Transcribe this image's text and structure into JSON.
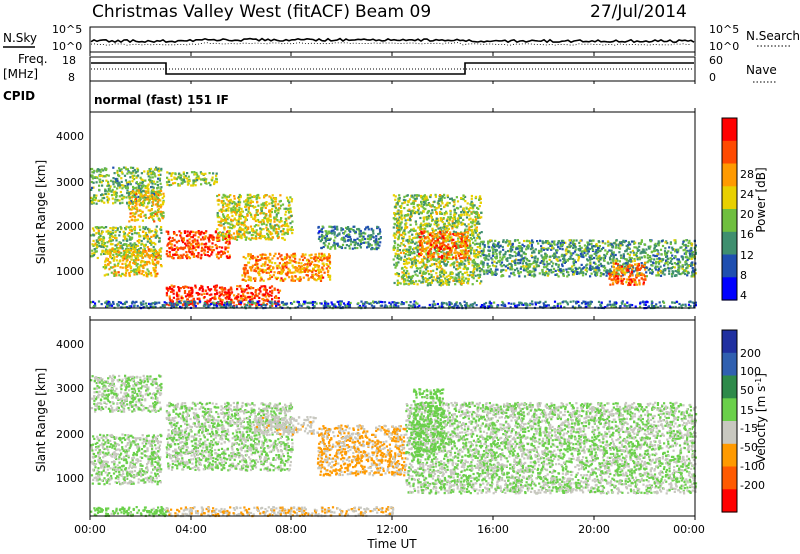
{
  "header": {
    "station": "Christmas Valley West (fitACF)",
    "beam": "Beam 09",
    "date": "27/Jul/2014"
  },
  "top_panels": {
    "nsky_label": "N.Sky",
    "nsearch_label": "N.Search",
    "nsky_ticks": [
      "10^5",
      "10^0"
    ],
    "nsky_right_ticks": [
      "10^5",
      "10^0"
    ],
    "freq_label_line1": "Freq.",
    "freq_label_line2": "[MHz]",
    "freq_ticks": [
      "18",
      "8"
    ],
    "nave_label": "Nave",
    "nave_ticks": [
      "60",
      "0"
    ],
    "cpid_label": "CPID",
    "cpid_text": "normal (fast) 151 IF"
  },
  "power_panel": {
    "ylabel": "Slant Range [km]",
    "yticks": [
      "4000",
      "3000",
      "2000",
      "1000"
    ],
    "colorbar_label": "Power [dB]",
    "colorbar_ticks": [
      "28",
      "24",
      "20",
      "16",
      "12",
      "8",
      "4"
    ],
    "colorbar_colors": [
      "#ff0000",
      "#ff4a00",
      "#ff9a00",
      "#e8d000",
      "#6fbf3f",
      "#3f8f6f",
      "#1f4fb0",
      "#0000ff"
    ]
  },
  "velocity_panel": {
    "ylabel": "Slant Range [km]",
    "yticks": [
      "4000",
      "3000",
      "2000",
      "1000"
    ],
    "colorbar_label": "Velocity [m s",
    "colorbar_label_sup": "-1",
    "colorbar_label_end": "]",
    "colorbar_ticks": [
      "200",
      "100",
      "50",
      "15",
      "-15",
      "-50",
      "-100",
      "-200"
    ],
    "colorbar_colors": [
      "#2030a0",
      "#3060b0",
      "#2e8a4a",
      "#6ad04a",
      "#c8c8c0",
      "#ff9a00",
      "#ff5a00",
      "#ff0000"
    ]
  },
  "x_axis": {
    "ticks": [
      "00:00",
      "04:00",
      "08:00",
      "12:00",
      "16:00",
      "20:00",
      "00:00"
    ],
    "label": "Time UT"
  },
  "chart_data": [
    {
      "type": "heatmap",
      "name_hint": "power",
      "xlabel": "Time UT",
      "ylabel": "Slant Range [km]",
      "xlim": [
        0,
        24
      ],
      "ylim": [
        180,
        4500
      ],
      "colorbar_label": "Power [dB]",
      "colorbar_range": [
        0,
        30
      ],
      "regions": [
        {
          "t": [
            0.0,
            2.8
          ],
          "r": [
            2500,
            3300
          ],
          "value": 12
        },
        {
          "t": [
            1.5,
            2.9
          ],
          "r": [
            2100,
            2800
          ],
          "value": 18
        },
        {
          "t": [
            0.0,
            2.8
          ],
          "r": [
            1300,
            2000
          ],
          "value": 14
        },
        {
          "t": [
            0.5,
            2.8
          ],
          "r": [
            900,
            1500
          ],
          "value": 18
        },
        {
          "t": [
            3.0,
            5.5
          ],
          "r": [
            1300,
            1900
          ],
          "value": 26
        },
        {
          "t": [
            3.0,
            5.0
          ],
          "r": [
            2900,
            3200
          ],
          "value": 14
        },
        {
          "t": [
            5.0,
            8.0
          ],
          "r": [
            1700,
            2700
          ],
          "value": 16
        },
        {
          "t": [
            6.0,
            9.5
          ],
          "r": [
            800,
            1400
          ],
          "value": 22
        },
        {
          "t": [
            3.0,
            7.5
          ],
          "r": [
            250,
            700
          ],
          "value": 28
        },
        {
          "t": [
            9.0,
            11.5
          ],
          "r": [
            1500,
            2000
          ],
          "value": 8
        },
        {
          "t": [
            12.0,
            15.5
          ],
          "r": [
            700,
            2700
          ],
          "value": 14
        },
        {
          "t": [
            13.0,
            15.0
          ],
          "r": [
            1300,
            1900
          ],
          "value": 24
        },
        {
          "t": [
            15.5,
            24.0
          ],
          "r": [
            900,
            1700
          ],
          "value": 10
        },
        {
          "t": [
            20.5,
            22.0
          ],
          "r": [
            700,
            1200
          ],
          "value": 24
        },
        {
          "t": [
            0.0,
            24.0
          ],
          "r": [
            200,
            350
          ],
          "value": 6
        }
      ]
    },
    {
      "type": "heatmap",
      "name_hint": "velocity",
      "xlabel": "Time UT",
      "ylabel": "Slant Range [km]",
      "xlim": [
        0,
        24
      ],
      "ylim": [
        180,
        4500
      ],
      "colorbar_label": "Velocity [m s-1]",
      "colorbar_range": [
        -250,
        250
      ],
      "regions": [
        {
          "t": [
            0.0,
            2.8
          ],
          "r": [
            2500,
            3300
          ],
          "value": 0
        },
        {
          "t": [
            0.0,
            2.8
          ],
          "r": [
            900,
            2000
          ],
          "value": 0
        },
        {
          "t": [
            3.0,
            8.0
          ],
          "r": [
            1200,
            2700
          ],
          "value": 0
        },
        {
          "t": [
            6.5,
            9.0
          ],
          "r": [
            2000,
            2400
          ],
          "value": -40
        },
        {
          "t": [
            9.0,
            12.5
          ],
          "r": [
            1100,
            2200
          ],
          "value": -80
        },
        {
          "t": [
            12.5,
            24.0
          ],
          "r": [
            700,
            2700
          ],
          "value": 0
        },
        {
          "t": [
            12.8,
            14.0
          ],
          "r": [
            1600,
            3000
          ],
          "value": 30
        },
        {
          "t": [
            3.0,
            12.0
          ],
          "r": [
            200,
            400
          ],
          "value": -60
        },
        {
          "t": [
            0.0,
            3.0
          ],
          "r": [
            200,
            400
          ],
          "value": 30
        }
      ]
    }
  ]
}
